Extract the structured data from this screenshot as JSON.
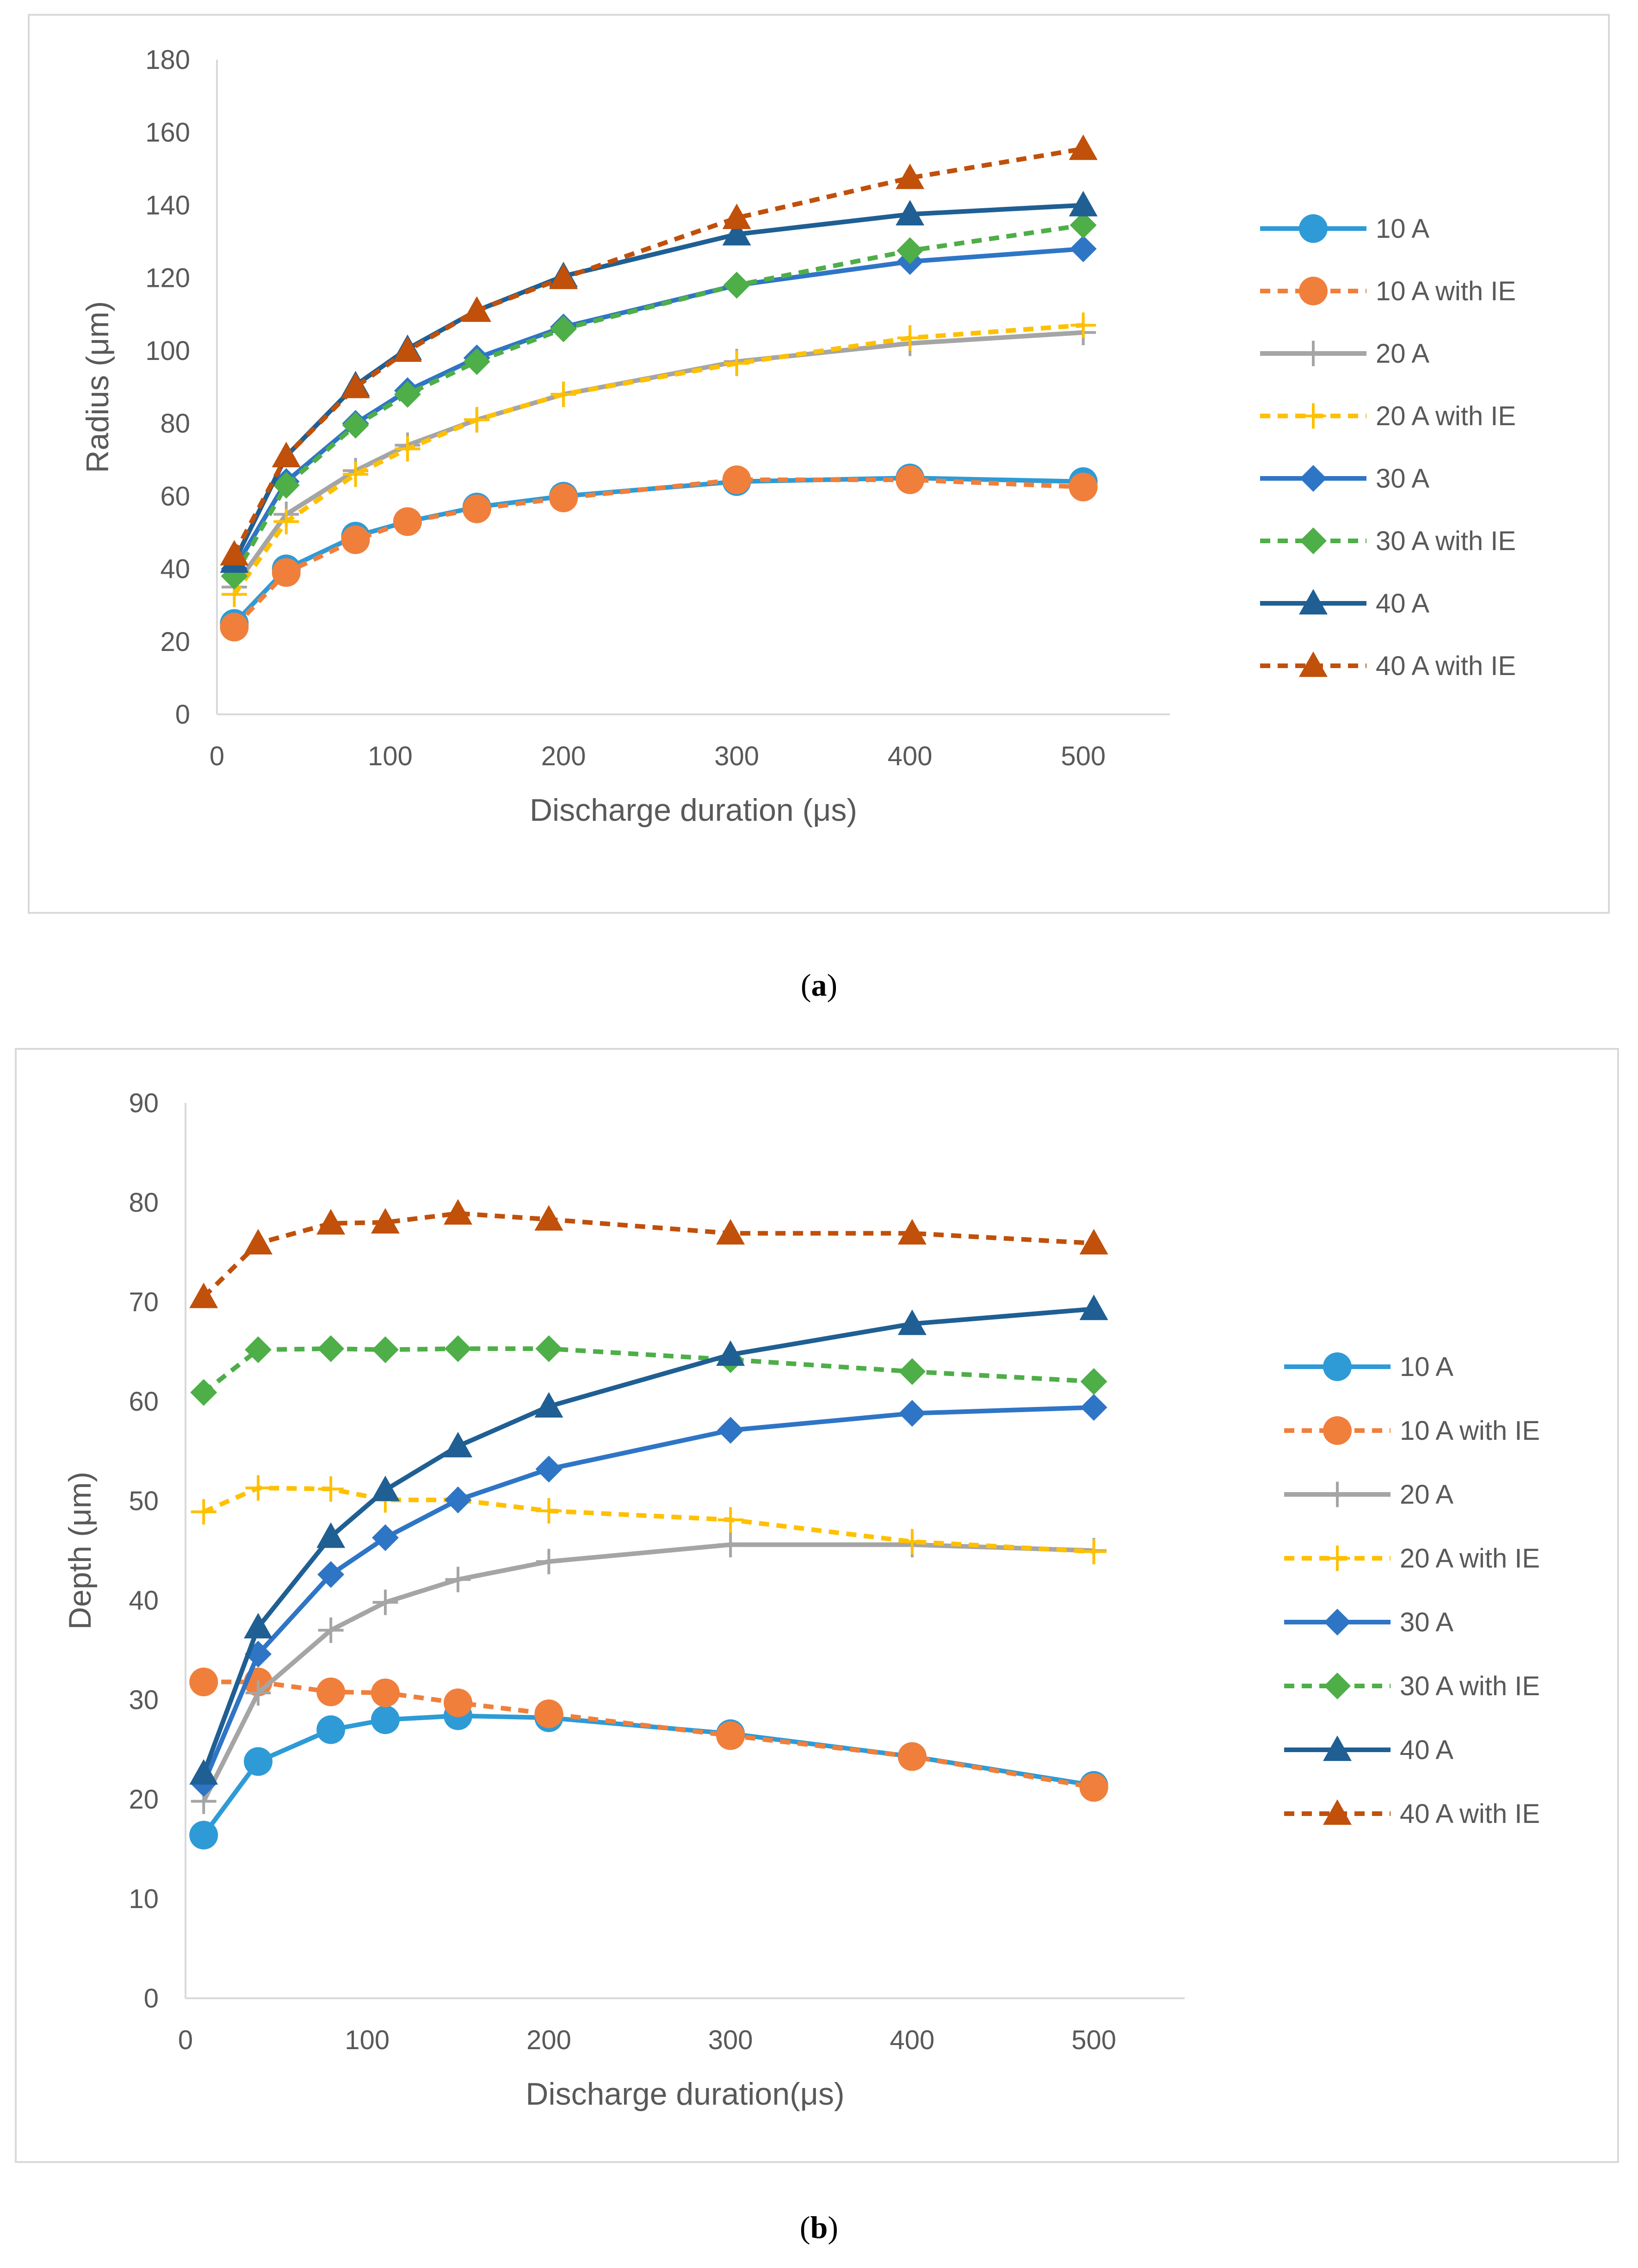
{
  "chart_data": [
    {
      "type": "line",
      "panel_label": "a",
      "xlabel": "Discharge duration (μs)",
      "ylabel": "Radius (μm)",
      "xlim": [
        0,
        550
      ],
      "ylim": [
        0,
        180
      ],
      "xticks": [
        0,
        100,
        200,
        300,
        400,
        500
      ],
      "yticks": [
        0,
        20,
        40,
        60,
        80,
        100,
        120,
        140,
        160,
        180
      ],
      "grid": false,
      "legend_position": "right",
      "x": [
        10,
        40,
        80,
        110,
        150,
        200,
        300,
        400,
        500
      ],
      "series": [
        {
          "name": "10 A",
          "color": "#2E9BD6",
          "dash": "solid",
          "marker": "circle",
          "values": [
            25,
            40,
            49,
            53,
            57,
            60,
            64,
            65,
            64
          ]
        },
        {
          "name": "10 A with IE",
          "color": "#F07F3C",
          "dash": "dashed",
          "marker": "circle",
          "values": [
            24,
            39,
            48,
            53,
            56.5,
            59.5,
            64.5,
            64.5,
            62.5
          ]
        },
        {
          "name": "20 A",
          "color": "#A5A5A5",
          "dash": "solid",
          "marker": "plus",
          "values": [
            35,
            55,
            67,
            74,
            81,
            88,
            97,
            102,
            105
          ]
        },
        {
          "name": "20 A with IE",
          "color": "#FFC000",
          "dash": "dashed",
          "marker": "plus",
          "values": [
            33,
            53,
            66,
            73,
            81,
            88,
            96.5,
            103.5,
            107
          ]
        },
        {
          "name": "30 A",
          "color": "#2F75C6",
          "dash": "solid",
          "marker": "diamond",
          "values": [
            40,
            64,
            80,
            89,
            98,
            106.5,
            118,
            124.5,
            128
          ]
        },
        {
          "name": "30 A with IE",
          "color": "#4EAE48",
          "dash": "dashed",
          "marker": "diamond",
          "values": [
            38,
            63,
            79.5,
            88,
            97,
            106,
            118,
            127.5,
            134.5
          ]
        },
        {
          "name": "40 A",
          "color": "#1F5F93",
          "dash": "solid",
          "marker": "triangle",
          "values": [
            42,
            71,
            90.5,
            100.5,
            111,
            120.5,
            132,
            137.5,
            140
          ]
        },
        {
          "name": "40 A with IE",
          "color": "#C0500A",
          "dash": "dashed",
          "marker": "triangle",
          "values": [
            44,
            71,
            90,
            100,
            111,
            120,
            136.5,
            147.5,
            155.5
          ]
        }
      ]
    },
    {
      "type": "line",
      "panel_label": "b",
      "xlabel": "Discharge duration(μs)",
      "ylabel": "Depth (μm)",
      "xlim": [
        0,
        550
      ],
      "ylim": [
        0,
        90
      ],
      "xticks": [
        0,
        100,
        200,
        300,
        400,
        500
      ],
      "yticks": [
        0,
        10,
        20,
        30,
        40,
        50,
        60,
        70,
        80,
        90
      ],
      "grid": false,
      "legend_position": "right",
      "x": [
        10,
        40,
        80,
        110,
        150,
        200,
        300,
        400,
        500
      ],
      "series": [
        {
          "name": "10 A",
          "color": "#2E9BD6",
          "dash": "solid",
          "marker": "circle",
          "values": [
            16.4,
            23.8,
            27,
            28,
            28.4,
            28.2,
            26.6,
            24.3,
            21.4
          ]
        },
        {
          "name": "10 A with IE",
          "color": "#F07F3C",
          "dash": "dashed",
          "marker": "circle",
          "values": [
            31.8,
            31.8,
            30.8,
            30.7,
            29.7,
            28.6,
            26.4,
            24.3,
            21.2
          ]
        },
        {
          "name": "20 A",
          "color": "#A5A5A5",
          "dash": "solid",
          "marker": "plus",
          "values": [
            19.8,
            30.7,
            37,
            39.8,
            42.1,
            43.9,
            45.6,
            45.6,
            45
          ]
        },
        {
          "name": "20 A with IE",
          "color": "#FFC000",
          "dash": "dashed",
          "marker": "plus",
          "values": [
            48.9,
            51.3,
            51.2,
            50.1,
            50.1,
            49,
            48.1,
            45.9,
            44.9
          ]
        },
        {
          "name": "30 A",
          "color": "#2F75C6",
          "dash": "solid",
          "marker": "diamond",
          "values": [
            21.6,
            34.6,
            42.6,
            46.3,
            50.1,
            53.2,
            57.1,
            58.8,
            59.4
          ]
        },
        {
          "name": "30 A with IE",
          "color": "#4EAE48",
          "dash": "dashed",
          "marker": "diamond",
          "values": [
            60.9,
            65.2,
            65.3,
            65.2,
            65.3,
            65.3,
            64.2,
            63,
            62
          ]
        },
        {
          "name": "40 A",
          "color": "#1F5F93",
          "dash": "solid",
          "marker": "triangle",
          "values": [
            22.6,
            37.3,
            46.4,
            51.1,
            55.5,
            59.5,
            64.7,
            67.8,
            69.3
          ]
        },
        {
          "name": "40 A with IE",
          "color": "#C0500A",
          "dash": "dashed",
          "marker": "triangle",
          "values": [
            70.5,
            75.9,
            77.9,
            78,
            78.9,
            78.3,
            76.9,
            76.9,
            75.9
          ]
        }
      ]
    }
  ],
  "captions": [
    "a",
    "b"
  ]
}
